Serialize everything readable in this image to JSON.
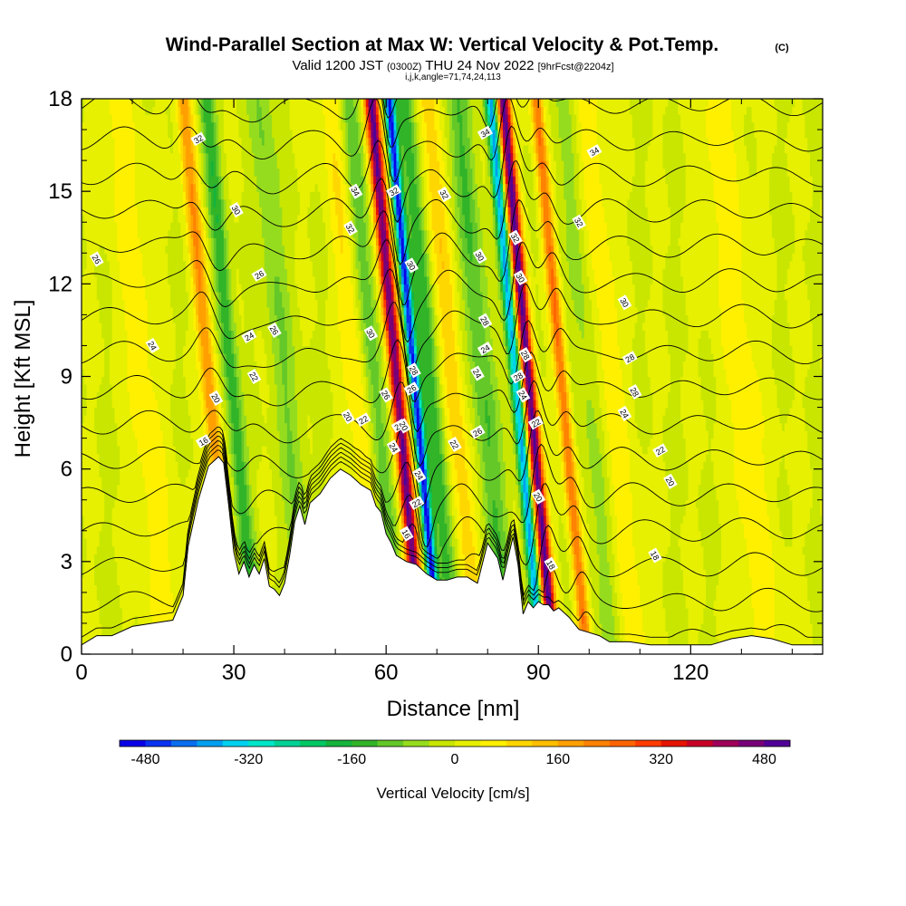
{
  "chart_data": {
    "type": "heatmap",
    "title": "Wind-Parallel Section at Max W: Vertical Velocity & Pot.Temp.",
    "title_mark": "(C)",
    "subtitle_parts": [
      "Valid 1200 JST",
      "(0300Z)",
      "THU 24 Nov 2022",
      "[9hrFcst@2204z]"
    ],
    "subtitle2": "i,j,k,angle=71,74,24,113",
    "xlabel": "Distance [nm]",
    "ylabel": "Height [Kft MSL]",
    "xlim": [
      0,
      146
    ],
    "ylim": [
      0,
      18
    ],
    "x_ticks": [
      "0",
      "30",
      "60",
      "90",
      "120"
    ],
    "x_tick_values": [
      0,
      30,
      60,
      90,
      120
    ],
    "y_ticks": [
      "0",
      "3",
      "6",
      "9",
      "12",
      "15",
      "18"
    ],
    "y_tick_values": [
      0,
      3,
      6,
      9,
      12,
      15,
      18
    ],
    "colorbar": {
      "label": "Vertical Velocity [cm/s]",
      "range": [
        -520,
        520
      ],
      "step": 40,
      "tick_labels": [
        "-480",
        "-320",
        "-160",
        "0",
        "160",
        "320",
        "480"
      ],
      "tick_values": [
        -480,
        -320,
        -160,
        0,
        160,
        320,
        480
      ],
      "colors": [
        "#0a00e6",
        "#0a32f0",
        "#0a6ef0",
        "#00a0f0",
        "#00d2f0",
        "#00e6c8",
        "#00d296",
        "#00c864",
        "#14b43c",
        "#32b428",
        "#64c828",
        "#96dc1e",
        "#c8e600",
        "#e6f000",
        "#fff000",
        "#ffd700",
        "#ffbe00",
        "#ffa000",
        "#ff8200",
        "#ff6400",
        "#ff3c00",
        "#e61400",
        "#c80028",
        "#a0005a",
        "#780078",
        "#500096"
      ]
    },
    "updraft_cores": [
      {
        "x": 62,
        "w": 1.4,
        "peak": 480
      },
      {
        "x": 88,
        "w": 1.3,
        "peak": 500
      },
      {
        "x": 25,
        "w": 1.5,
        "peak": 200
      },
      {
        "x": 94.5,
        "w": 1.2,
        "peak": 240
      },
      {
        "x": 73,
        "w": 2.2,
        "peak": 110
      },
      {
        "x": 54,
        "w": 2.4,
        "peak": 80
      },
      {
        "x": 104,
        "w": 3.0,
        "peak": 70
      },
      {
        "x": 130,
        "w": 4.0,
        "peak": 60
      },
      {
        "x": 12,
        "w": 3.5,
        "peak": 60
      }
    ],
    "downdraft_cores": [
      {
        "x": 65.5,
        "w": 1.0,
        "peak": -480
      },
      {
        "x": 85.5,
        "w": 1.1,
        "peak": -380
      },
      {
        "x": 29.5,
        "w": 1.6,
        "peak": -150
      },
      {
        "x": 68.5,
        "w": 2.0,
        "peak": -150
      },
      {
        "x": 57.5,
        "w": 2.0,
        "peak": -110
      },
      {
        "x": 79,
        "w": 2.4,
        "peak": -120
      },
      {
        "x": 40,
        "w": 2.5,
        "peak": -80
      },
      {
        "x": 100,
        "w": 2.5,
        "peak": -60
      }
    ],
    "terrain": {
      "x": [
        0,
        3,
        6,
        10,
        14,
        18,
        20,
        21,
        23,
        25,
        27,
        28,
        29,
        30,
        31,
        32,
        33,
        34,
        35,
        36,
        37,
        38,
        39,
        40,
        41,
        42,
        43,
        44,
        45,
        47,
        49,
        51,
        53,
        55,
        57,
        58,
        59,
        60,
        61,
        62,
        64,
        66,
        68,
        70,
        72,
        74,
        76,
        78,
        80,
        82,
        83,
        84,
        85,
        86,
        87,
        88,
        89,
        90,
        91,
        92,
        93,
        94,
        96,
        98,
        100,
        102,
        104,
        108,
        112,
        116,
        120,
        124,
        128,
        132,
        136,
        140,
        144,
        146
      ],
      "y": [
        0.3,
        0.6,
        0.6,
        0.9,
        1.0,
        1.1,
        1.9,
        3.5,
        5.0,
        6.1,
        6.4,
        6.2,
        4.8,
        3.3,
        2.6,
        3.0,
        2.5,
        2.9,
        2.6,
        3.1,
        2.2,
        2.1,
        1.9,
        2.3,
        3.2,
        4.3,
        4.8,
        4.2,
        4.9,
        5.2,
        5.7,
        6.0,
        5.8,
        5.5,
        5.3,
        4.8,
        4.6,
        3.9,
        3.6,
        3.2,
        3.0,
        2.9,
        2.6,
        2.4,
        2.4,
        2.5,
        2.5,
        2.3,
        3.6,
        3.1,
        2.4,
        3.1,
        3.8,
        2.9,
        1.3,
        1.7,
        1.5,
        1.7,
        1.6,
        1.6,
        1.4,
        1.5,
        1.2,
        0.8,
        0.7,
        0.6,
        0.4,
        0.4,
        0.3,
        0.3,
        0.3,
        0.3,
        0.5,
        0.6,
        0.5,
        0.3,
        0.3,
        0.3
      ]
    },
    "theta_levels": [
      18,
      20,
      22,
      24,
      26,
      28,
      30,
      32,
      34
    ],
    "theta_labels": [
      {
        "text": "16",
        "x": 24,
        "y": 6.9
      },
      {
        "text": "20",
        "x": 26.5,
        "y": 8.3
      },
      {
        "text": "22",
        "x": 34,
        "y": 9.0
      },
      {
        "text": "24",
        "x": 33,
        "y": 10.3
      },
      {
        "text": "24",
        "x": 14,
        "y": 10.0
      },
      {
        "text": "26",
        "x": 38,
        "y": 10.5
      },
      {
        "text": "26",
        "x": 35,
        "y": 12.3
      },
      {
        "text": "26",
        "x": 3,
        "y": 12.8
      },
      {
        "text": "30",
        "x": 30.5,
        "y": 14.4
      },
      {
        "text": "32",
        "x": 23,
        "y": 16.7
      },
      {
        "text": "34",
        "x": 54,
        "y": 15.0
      },
      {
        "text": "32",
        "x": 53,
        "y": 13.8
      },
      {
        "text": "32",
        "x": 61.5,
        "y": 15.0
      },
      {
        "text": "30",
        "x": 57,
        "y": 10.4
      },
      {
        "text": "26",
        "x": 60,
        "y": 8.4
      },
      {
        "text": "26",
        "x": 62.5,
        "y": 7.4
      },
      {
        "text": "24",
        "x": 61.5,
        "y": 6.7
      },
      {
        "text": "20",
        "x": 52.5,
        "y": 7.7
      },
      {
        "text": "22",
        "x": 55.5,
        "y": 7.6
      },
      {
        "text": "30",
        "x": 65,
        "y": 12.6
      },
      {
        "text": "28",
        "x": 65.5,
        "y": 9.2
      },
      {
        "text": "26",
        "x": 65,
        "y": 8.6
      },
      {
        "text": "20",
        "x": 63.5,
        "y": 7.4
      },
      {
        "text": "24",
        "x": 66.5,
        "y": 5.8
      },
      {
        "text": "22",
        "x": 66,
        "y": 4.9
      },
      {
        "text": "16",
        "x": 64,
        "y": 3.9
      },
      {
        "text": "32",
        "x": 71.5,
        "y": 14.9
      },
      {
        "text": "34",
        "x": 79.5,
        "y": 16.9
      },
      {
        "text": "30",
        "x": 78.5,
        "y": 12.9
      },
      {
        "text": "28",
        "x": 79.5,
        "y": 10.8
      },
      {
        "text": "24",
        "x": 79.5,
        "y": 9.9
      },
      {
        "text": "24",
        "x": 78,
        "y": 9.1
      },
      {
        "text": "22",
        "x": 73.5,
        "y": 6.8
      },
      {
        "text": "26",
        "x": 78,
        "y": 7.2
      },
      {
        "text": "32",
        "x": 85.5,
        "y": 13.5
      },
      {
        "text": "30",
        "x": 86.5,
        "y": 12.2
      },
      {
        "text": "28",
        "x": 86,
        "y": 9.0
      },
      {
        "text": "28",
        "x": 87.5,
        "y": 9.7
      },
      {
        "text": "24",
        "x": 87,
        "y": 8.4
      },
      {
        "text": "22",
        "x": 89.5,
        "y": 7.5
      },
      {
        "text": "20",
        "x": 90,
        "y": 5.1
      },
      {
        "text": "18",
        "x": 92.5,
        "y": 2.9
      },
      {
        "text": "34",
        "x": 101,
        "y": 16.3
      },
      {
        "text": "32",
        "x": 98,
        "y": 14.0
      },
      {
        "text": "30",
        "x": 107,
        "y": 11.4
      },
      {
        "text": "28",
        "x": 108,
        "y": 9.6
      },
      {
        "text": "28",
        "x": 109,
        "y": 8.5
      },
      {
        "text": "24",
        "x": 107,
        "y": 7.8
      },
      {
        "text": "22",
        "x": 114,
        "y": 6.6
      },
      {
        "text": "20",
        "x": 116,
        "y": 5.6
      },
      {
        "text": "18",
        "x": 113,
        "y": 3.2
      }
    ]
  }
}
